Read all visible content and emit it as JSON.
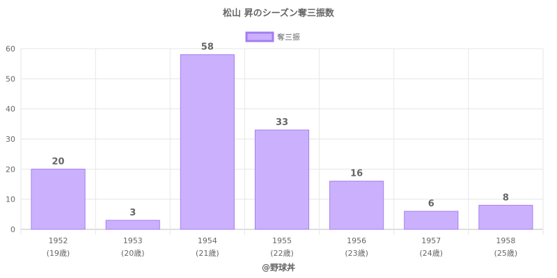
{
  "chart_data": {
    "type": "bar",
    "title": "松山 昇のシーズン奪三振数",
    "categories": [
      "1952",
      "1953",
      "1954",
      "1955",
      "1956",
      "1957",
      "1958"
    ],
    "sublabels": [
      "(19歳)",
      "(20歳)",
      "(21歳)",
      "(22歳)",
      "(23歳)",
      "(24歳)",
      "(25歳)"
    ],
    "series": [
      {
        "name": "奪三振",
        "values": [
          20,
          3,
          58,
          33,
          16,
          6,
          8
        ],
        "fill": "#cbb1fd",
        "stroke": "#a47cf2"
      }
    ],
    "yticks": [
      "0",
      "10",
      "20",
      "30",
      "40",
      "50",
      "60"
    ],
    "ylim": [
      0,
      60
    ],
    "grid": true,
    "legend": "top-center",
    "xlabel": "",
    "ylabel": ""
  },
  "footer": "@野球丼"
}
